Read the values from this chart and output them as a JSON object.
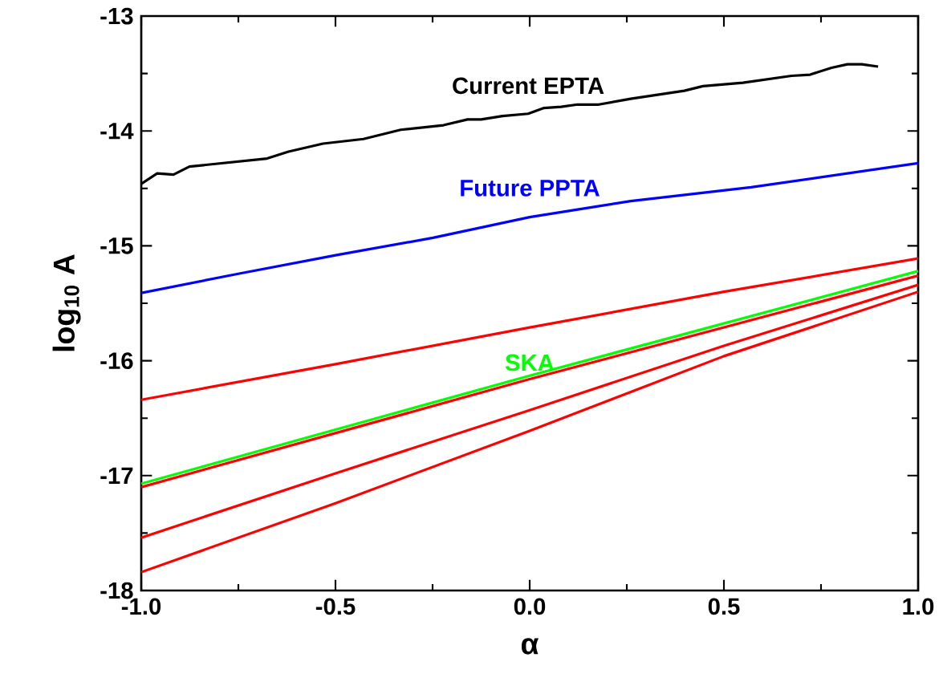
{
  "chart_data": {
    "type": "line",
    "xlabel": "α",
    "ylabel": "log$_{10}$ A",
    "xlim": [
      -1.0,
      1.0
    ],
    "ylim": [
      -18,
      -13
    ],
    "xticks": [
      {
        "value": -1.0,
        "label": "-1.0"
      },
      {
        "value": -0.5,
        "label": "-0.5"
      },
      {
        "value": 0.0,
        "label": "0.0"
      },
      {
        "value": 0.5,
        "label": "0.5"
      },
      {
        "value": 1.0,
        "label": "1.0"
      }
    ],
    "yticks": [
      -18,
      -17,
      -16,
      -15,
      -14,
      -13
    ],
    "line_style": "solid",
    "series": [
      {
        "name": "Current EPTA",
        "color": "#000000",
        "x": [
          -1,
          -0.959,
          -0.917,
          -0.876,
          -0.676,
          -0.621,
          -0.532,
          -0.428,
          -0.332,
          -0.222,
          -0.16,
          -0.125,
          -0.07,
          -0.004,
          0.037,
          0.081,
          0.123,
          0.178,
          0.26,
          0.398,
          0.446,
          0.549,
          0.674,
          0.722,
          0.777,
          0.818,
          0.855,
          0.897
        ],
        "values": [
          -14.46,
          -14.37,
          -14.38,
          -14.31,
          -14.24,
          -14.18,
          -14.11,
          -14.07,
          -13.99,
          -13.95,
          -13.9,
          -13.9,
          -13.87,
          -13.85,
          -13.8,
          -13.79,
          -13.77,
          -13.77,
          -13.72,
          -13.65,
          -13.61,
          -13.58,
          -13.52,
          -13.51,
          -13.45,
          -13.42,
          -13.42,
          -13.44
        ]
      },
      {
        "name": "Future PPTA",
        "color": "#0000ff",
        "x": [
          -1,
          -0.745,
          -0.497,
          -0.249,
          0,
          0.26,
          0.57,
          1.0
        ],
        "values": [
          -15.41,
          -15.24,
          -15.08,
          -14.93,
          -14.75,
          -14.61,
          -14.49,
          -14.28
        ]
      },
      {
        "color": "#ff0000",
        "x": [
          -1,
          -0.5,
          0,
          0.5,
          1
        ],
        "values": [
          -16.34,
          -16.03,
          -15.71,
          -15.4,
          -15.11
        ]
      },
      {
        "color": "#ff0000",
        "x": [
          -1,
          0,
          1
        ],
        "values": [
          -17.1,
          -16.16,
          -15.26
        ]
      },
      {
        "color": "#ff0000",
        "x": [
          -1,
          -0.5,
          0,
          0.5,
          1
        ],
        "values": [
          -17.54,
          -16.98,
          -16.43,
          -15.87,
          -15.34
        ]
      },
      {
        "color": "#ff0000",
        "x": [
          -1,
          -0.5,
          0,
          0.5,
          1
        ],
        "values": [
          -17.84,
          -17.24,
          -16.61,
          -15.96,
          -15.4
        ]
      },
      {
        "name": "SKA",
        "color": "#00ff00",
        "x": [
          -1,
          0,
          1
        ],
        "values": [
          -17.07,
          -16.13,
          -15.22
        ]
      }
    ]
  }
}
